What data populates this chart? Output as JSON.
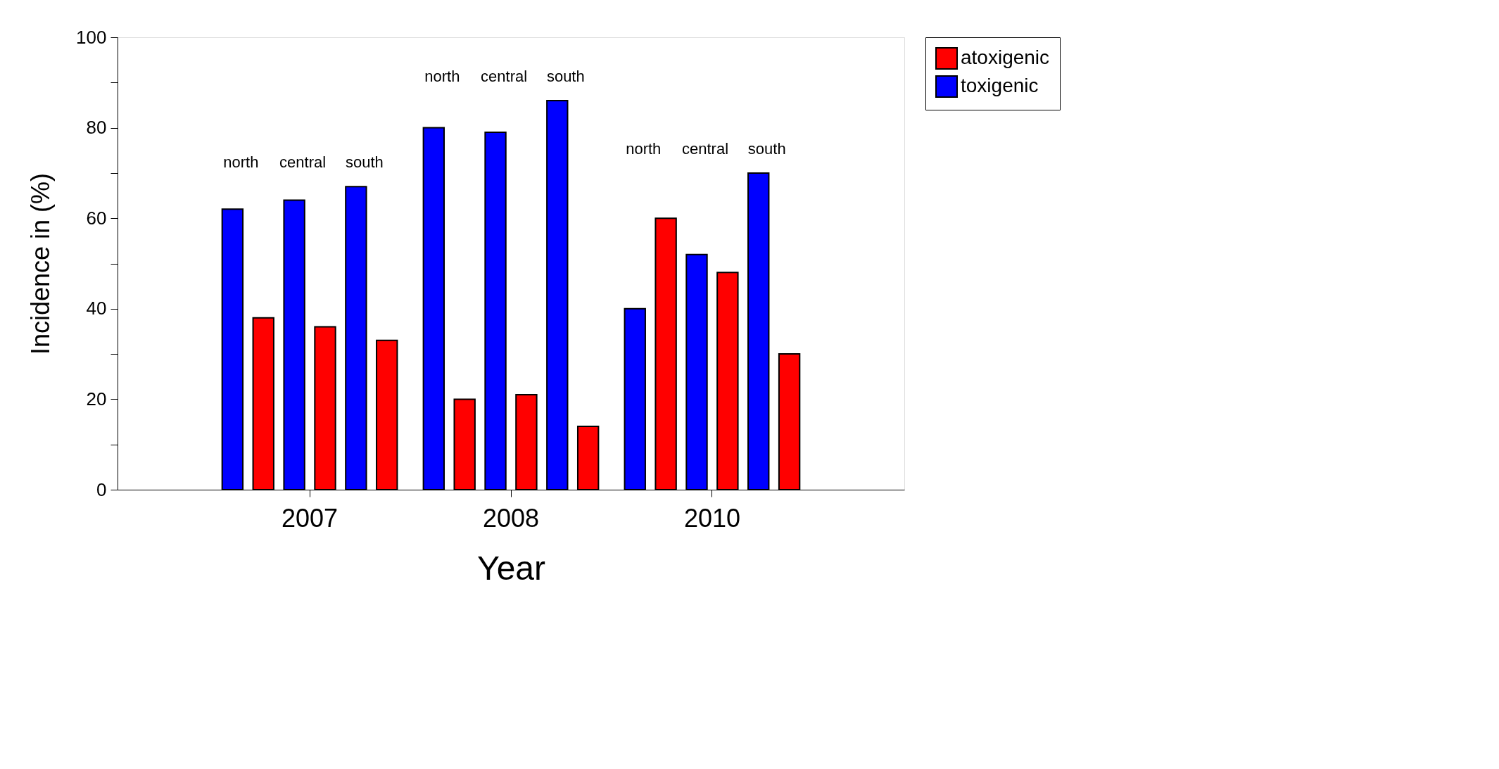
{
  "chart_data": {
    "type": "bar",
    "xlabel": "Year",
    "ylabel": "Incidence in (%)",
    "categories": [
      "2007",
      "2008",
      "2010"
    ],
    "series": [
      {
        "name": "toxigenic",
        "color": "#0000ff",
        "values": [
          62,
          80,
          40
        ]
      },
      {
        "name": "atoxigenic",
        "color": "#ff0000",
        "values": [
          38,
          20,
          60
        ]
      },
      {
        "color": "#0000ff",
        "values": [
          64,
          79,
          52
        ]
      },
      {
        "color": "#ff0000",
        "values": [
          36,
          21,
          48
        ]
      },
      {
        "color": "#0000ff",
        "values": [
          67,
          86,
          70
        ]
      },
      {
        "color": "#ff0000",
        "values": [
          33,
          14,
          30
        ]
      }
    ],
    "annotations": [
      "north",
      "central",
      "south",
      "north",
      "central",
      "south",
      "north",
      "central",
      "south"
    ],
    "ylim": [
      0,
      100
    ],
    "yticks": [
      0,
      {
        "value": 10,
        "label": null
      },
      20,
      {
        "value": 30,
        "label": null
      },
      40,
      {
        "value": 50,
        "label": null
      },
      60,
      {
        "value": 70,
        "label": null
      },
      80,
      {
        "value": 90,
        "label": null
      },
      100
    ],
    "grid": false,
    "legend": "top right"
  }
}
